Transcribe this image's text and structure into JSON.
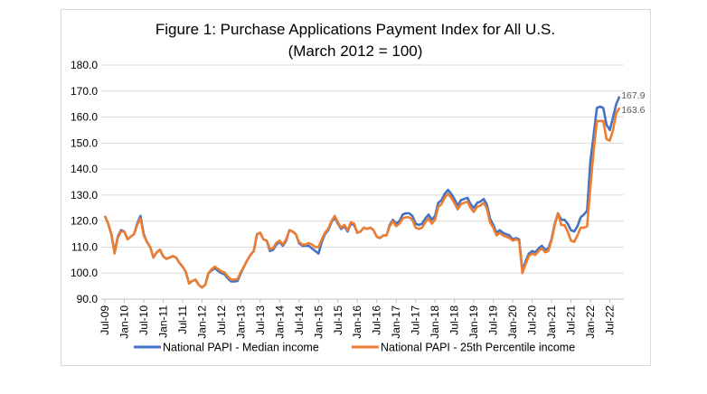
{
  "chart_data": {
    "type": "line",
    "title": "Figure 1: Purchase Applications Payment Index for All U.S.",
    "subtitle": "(March 2012 = 100)",
    "xlabel": "",
    "ylabel": "",
    "ylim": [
      90,
      180
    ],
    "y_ticks": [
      "90.0",
      "100.0",
      "110.0",
      "120.0",
      "130.0",
      "140.0",
      "150.0",
      "160.0",
      "170.0",
      "180.0"
    ],
    "x_start": "Jul-09",
    "x_end": "Oct-22",
    "x_frequency": "monthly",
    "x_tick_labels": [
      "Jul-09",
      "Jan-10",
      "Jul-10",
      "Jan-11",
      "Jul-11",
      "Jan-12",
      "Jul-12",
      "Jan-13",
      "Jul-13",
      "Jan-14",
      "Jul-14",
      "Jan-15",
      "Jul-15",
      "Jan-16",
      "Jul-16",
      "Jan-17",
      "Jul-17",
      "Jan-18",
      "Jul-18",
      "Jan-19",
      "Jul-19",
      "Jan-20",
      "Jul-20",
      "Jan-21",
      "Jul-21",
      "Jan-22",
      "Jul-22"
    ],
    "grid": true,
    "legend_position": "bottom",
    "series": [
      {
        "name": "National PAPI - Median income",
        "color": "#4472c4",
        "end_label": "167.9",
        "values": [
          122,
          119,
          115,
          108,
          114,
          116.5,
          116,
          113,
          114,
          115,
          119,
          122,
          115,
          112,
          110,
          106,
          108,
          109,
          106.5,
          105.5,
          106,
          106.5,
          106,
          104,
          102.5,
          100.5,
          96,
          97,
          97.5,
          95.5,
          94.5,
          95.5,
          100,
          101,
          102,
          100.8,
          100,
          99.5,
          98,
          96.8,
          96.8,
          97,
          100,
          102.5,
          105,
          107,
          108.5,
          115,
          115.5,
          113,
          112.5,
          108.5,
          109,
          111,
          112,
          110.5,
          112.5,
          116.5,
          116,
          115,
          111.5,
          110.5,
          110.5,
          110.5,
          109.5,
          108.5,
          107.5,
          112,
          115,
          116.5,
          119.5,
          121.5,
          119,
          117,
          118,
          116,
          119,
          118.5,
          115.5,
          116,
          117.5,
          117,
          117.5,
          116.5,
          114,
          113.5,
          114.5,
          114.5,
          118.5,
          120.5,
          119,
          120,
          122.5,
          123,
          123,
          122,
          119,
          118.5,
          119,
          121,
          122.5,
          120.5,
          122,
          127,
          128,
          130.5,
          132,
          130.5,
          128.5,
          126,
          128,
          128.5,
          129,
          126.5,
          125,
          127,
          127.5,
          128.5,
          126.5,
          121,
          118.5,
          115.5,
          116.5,
          115.5,
          115,
          114.5,
          113,
          113.5,
          113,
          101,
          104.5,
          107.5,
          108.5,
          108,
          109.5,
          110.5,
          109,
          109.5,
          113,
          119,
          123,
          120.5,
          120.5,
          119,
          116.5,
          116,
          118,
          121.5,
          122.5,
          124,
          143,
          153,
          163.5,
          164,
          163.5,
          157,
          155,
          160,
          165,
          167.9
        ]
      },
      {
        "name": "National PAPI - 25th Percentile income",
        "color": "#ed7d31",
        "end_label": "163.6",
        "values": [
          122,
          119,
          115,
          107.5,
          113.5,
          116,
          116,
          113,
          114,
          115,
          118.5,
          121,
          114.5,
          112,
          110,
          106,
          108,
          109,
          106.5,
          105.5,
          106,
          106.5,
          106,
          104,
          102.5,
          100.5,
          96,
          97,
          97.5,
          95.5,
          94.5,
          95.5,
          100,
          101.5,
          102.5,
          101.5,
          100.7,
          100.2,
          98.7,
          97.5,
          97.5,
          97.7,
          100.5,
          102.5,
          105,
          107,
          108.5,
          115,
          115.5,
          113,
          112.5,
          109.2,
          109.7,
          111.7,
          112.5,
          111,
          113,
          116.5,
          116,
          115,
          112,
          111,
          111,
          111.5,
          111,
          110,
          110,
          113,
          115.5,
          117,
          120,
          122,
          119.5,
          117.5,
          118.5,
          116.5,
          119.5,
          119,
          115.5,
          116,
          117.5,
          117,
          117.5,
          116.5,
          114,
          113.5,
          114.5,
          114.5,
          118,
          120,
          118,
          119,
          121,
          121.5,
          121.5,
          120.5,
          117.5,
          117,
          117.5,
          119.5,
          121,
          119,
          120.5,
          125.5,
          126.5,
          129,
          130.5,
          129,
          127,
          124.5,
          126.5,
          127,
          127.5,
          125,
          123.5,
          125.5,
          126,
          127,
          125,
          119.5,
          117.5,
          114.5,
          115.5,
          114.5,
          114,
          113.5,
          112.5,
          113,
          112.5,
          100,
          103.5,
          106.5,
          107.5,
          107,
          108.5,
          109.5,
          108,
          108.5,
          112.5,
          118.5,
          123,
          118.5,
          118.5,
          116,
          112.5,
          112,
          114.5,
          117.5,
          117.5,
          118,
          133,
          147,
          158.5,
          158.5,
          158.5,
          151.5,
          151,
          155,
          161.5,
          163.6
        ]
      }
    ]
  }
}
